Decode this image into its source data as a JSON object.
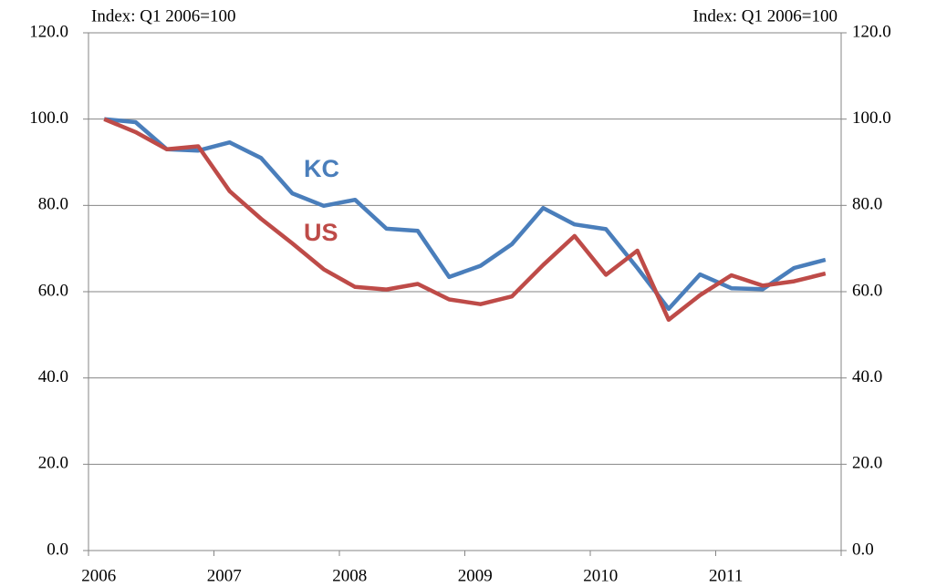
{
  "chart_data": {
    "type": "line",
    "y_label": "Index: Q1 2006=100",
    "y2_label": "Index: Q1 2006=100",
    "categories": [
      "2006",
      null,
      null,
      null,
      "2007",
      null,
      null,
      null,
      "2008",
      null,
      null,
      null,
      "2009",
      null,
      null,
      null,
      "2010",
      null,
      null,
      null,
      "2011",
      null,
      null,
      null
    ],
    "series": [
      {
        "name": "KC",
        "color": "#4a7ebb",
        "values": [
          100,
          99.3,
          93.0,
          92.7,
          94.6,
          91.0,
          82.8,
          79.9,
          81.3,
          74.6,
          74.1,
          63.4,
          66.0,
          71.0,
          79.4,
          75.6,
          74.5,
          65.5,
          56.0,
          64.0,
          60.8,
          60.6,
          65.5,
          67.4
        ]
      },
      {
        "name": "US",
        "color": "#be4b48",
        "values": [
          100,
          97.0,
          93.0,
          93.7,
          83.3,
          76.9,
          71.2,
          65.2,
          61.1,
          60.5,
          61.8,
          58.2,
          57.1,
          58.9,
          66.2,
          72.9,
          63.9,
          69.5,
          53.5,
          59.2,
          63.8,
          61.4,
          62.4,
          64.2
        ]
      }
    ],
    "ylim": [
      0,
      120
    ],
    "yticks": [
      {
        "value": 0,
        "label": "0.0"
      },
      {
        "value": 20,
        "label": "20.0"
      },
      {
        "value": 40,
        "label": "40.0"
      },
      {
        "value": 60,
        "label": "60.0"
      },
      {
        "value": 80,
        "label": "80.0"
      },
      {
        "value": 100,
        "label": "100.0"
      },
      {
        "value": 120,
        "label": "120.0"
      }
    ],
    "y2lim": [
      0,
      120
    ],
    "y2ticks": [
      {
        "value": 0,
        "label": "0.0"
      },
      {
        "value": 20,
        "label": "20.0"
      },
      {
        "value": 40,
        "label": "40.0"
      },
      {
        "value": 60,
        "label": "60.0"
      },
      {
        "value": 80,
        "label": "80.0"
      },
      {
        "value": 100,
        "label": "100.0"
      },
      {
        "value": 120,
        "label": "120.0"
      }
    ],
    "grid": true
  }
}
